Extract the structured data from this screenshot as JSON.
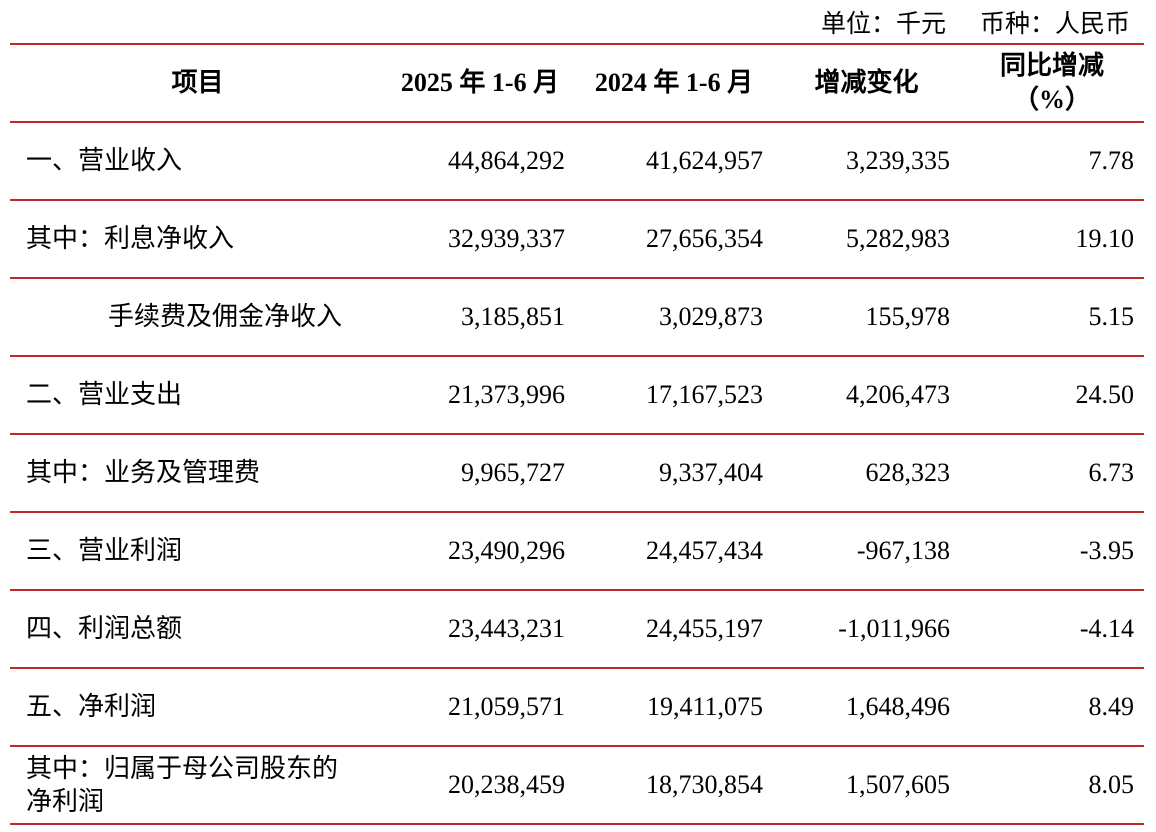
{
  "unit_note": {
    "unit": "单位：千元",
    "currency": "币种：人民币"
  },
  "table": {
    "header": [
      "项目",
      "2025 年 1-6 月",
      "2024 年 1-6 月",
      "增减变化",
      [
        "同比增减",
        "（%）"
      ]
    ],
    "rows": [
      [
        "一、营业收入",
        "44,864,292",
        "41,624,957",
        "3,239,335",
        "7.78"
      ],
      [
        "其中：利息净收入",
        "32,939,337",
        "27,656,354",
        "5,282,983",
        "19.10"
      ],
      [
        "手续费及佣金净收入",
        "3,185,851",
        "3,029,873",
        "155,978",
        "5.15"
      ],
      [
        "二、营业支出",
        "21,373,996",
        "17,167,523",
        "4,206,473",
        "24.50"
      ],
      [
        "其中：业务及管理费",
        "9,965,727",
        "9,337,404",
        "628,323",
        "6.73"
      ],
      [
        "三、营业利润",
        "23,490,296",
        "24,457,434",
        "-967,138",
        "-3.95"
      ],
      [
        "四、利润总额",
        "23,443,231",
        "24,455,197",
        "-1,011,966",
        "-4.14"
      ],
      [
        "五、净利润",
        "21,059,571",
        "19,411,075",
        "1,648,496",
        "8.49"
      ],
      [
        "其中：归属于母公司股东的净利润",
        "20,238,459",
        "18,730,854",
        "1,507,605",
        "8.05"
      ]
    ]
  }
}
